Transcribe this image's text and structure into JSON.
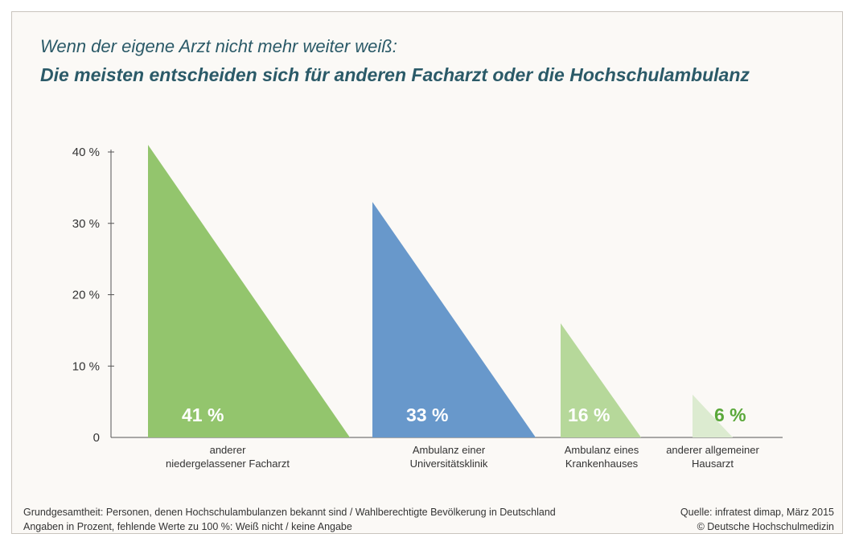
{
  "title": "Wenn der eigene Arzt nicht mehr weiter weiß:",
  "subtitle": "Die meisten entscheiden sich für anderen  Facharzt oder die Hochschulambulanz",
  "footer": {
    "note_line1": "Grundgesamtheit: Personen, denen Hochschulambulanzen bekannt sind / Wahlberechtigte Bevölkerung in Deutschland",
    "note_line2": "Angaben in Prozent, fehlende Werte zu 100 %: Weiß nicht / keine Angabe",
    "source": "Quelle: infratest dimap, März 2015",
    "copyright": "© Deutsche Hochschulmedizin"
  },
  "chart_data": {
    "type": "bar",
    "ylim": [
      0,
      40
    ],
    "yticks": [
      0,
      10,
      20,
      30,
      40
    ],
    "ytick_labels": [
      "0",
      "10 %",
      "20 %",
      "30 %",
      "40 %"
    ],
    "categories": [
      [
        "anderer",
        "niedergelassener Facharzt"
      ],
      [
        "Ambulanz einer",
        "Universitätsklinik"
      ],
      [
        "Ambulanz eines",
        "Krankenhauses"
      ],
      [
        "anderer allgemeiner",
        "Hausarzt"
      ]
    ],
    "values": [
      41,
      33,
      16,
      6
    ],
    "value_labels": [
      "41 %",
      "33 %",
      "16 %",
      "6 %"
    ],
    "colors": [
      "#93c56d",
      "#6898cb",
      "#b6d89a",
      "#dcebd0"
    ],
    "label_colors": [
      "#ffffff",
      "#ffffff",
      "#ffffff",
      "#5aa83a"
    ],
    "grid": false,
    "legend": "none"
  }
}
